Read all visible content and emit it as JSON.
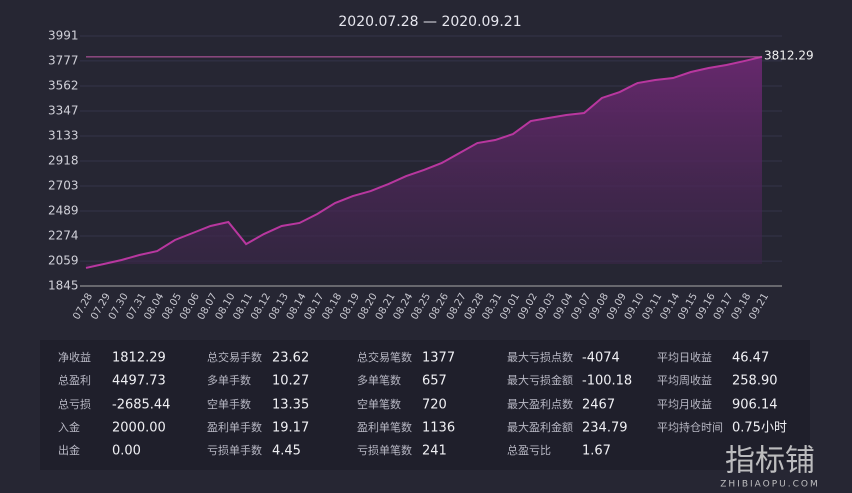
{
  "chart_data": {
    "type": "area",
    "title": "2020.07.28 — 2020.09.21",
    "categories": [
      "07.28",
      "07.29",
      "07.30",
      "07.31",
      "08.04",
      "08.05",
      "08.06",
      "08.07",
      "08.10",
      "08.11",
      "08.12",
      "08.13",
      "08.14",
      "08.17",
      "08.18",
      "08.19",
      "08.20",
      "08.21",
      "08.24",
      "08.25",
      "08.26",
      "08.27",
      "08.28",
      "08.31",
      "09.01",
      "09.02",
      "09.03",
      "09.04",
      "09.07",
      "09.08",
      "09.09",
      "09.10",
      "09.11",
      "09.14",
      "09.15",
      "09.16",
      "09.17",
      "09.18",
      "09.21"
    ],
    "values": [
      2000,
      2034,
      2068,
      2111,
      2145,
      2240,
      2300,
      2360,
      2394,
      2205,
      2291,
      2360,
      2386,
      2463,
      2557,
      2617,
      2660,
      2720,
      2789,
      2841,
      2901,
      2987,
      3072,
      3098,
      3149,
      3261,
      3287,
      3313,
      3330,
      3459,
      3510,
      3587,
      3613,
      3630,
      3682,
      3716,
      3742,
      3776,
      3812.29
    ],
    "color": "#b8379f",
    "mark_line": 3812.29,
    "ylim": [
      1845,
      3991
    ],
    "yticks": [
      1845,
      2059,
      2274,
      2489,
      2703,
      2918,
      3133,
      3347,
      3562,
      3777,
      3991
    ],
    "grid": true
  },
  "stats": {
    "rows": [
      [
        "净收益",
        "1812.29",
        "总交易手数",
        "23.62",
        "总交易笔数",
        "1377",
        "最大亏损点数",
        "-4074",
        "平均日收益",
        "46.47"
      ],
      [
        "总盈利",
        "4497.73",
        "多单手数",
        "10.27",
        "多单笔数",
        "657",
        "最大亏损金额",
        "-100.18",
        "平均周收益",
        "258.90"
      ],
      [
        "总亏损",
        "-2685.44",
        "空单手数",
        "13.35",
        "空单笔数",
        "720",
        "最大盈利点数",
        "2467",
        "平均月收益",
        "906.14"
      ],
      [
        "入金",
        "2000.00",
        "盈利单手数",
        "19.17",
        "盈利单笔数",
        "1136",
        "最大盈利金额",
        "234.79",
        "平均持仓时间",
        "0.75小时"
      ],
      [
        "出金",
        "0.00",
        "亏损单手数",
        "4.45",
        "亏损单笔数",
        "241",
        "总盈亏比",
        "1.67"
      ]
    ]
  },
  "watermark": {
    "title": "指标铺",
    "url": "ZHIBIAOPU.COM"
  }
}
